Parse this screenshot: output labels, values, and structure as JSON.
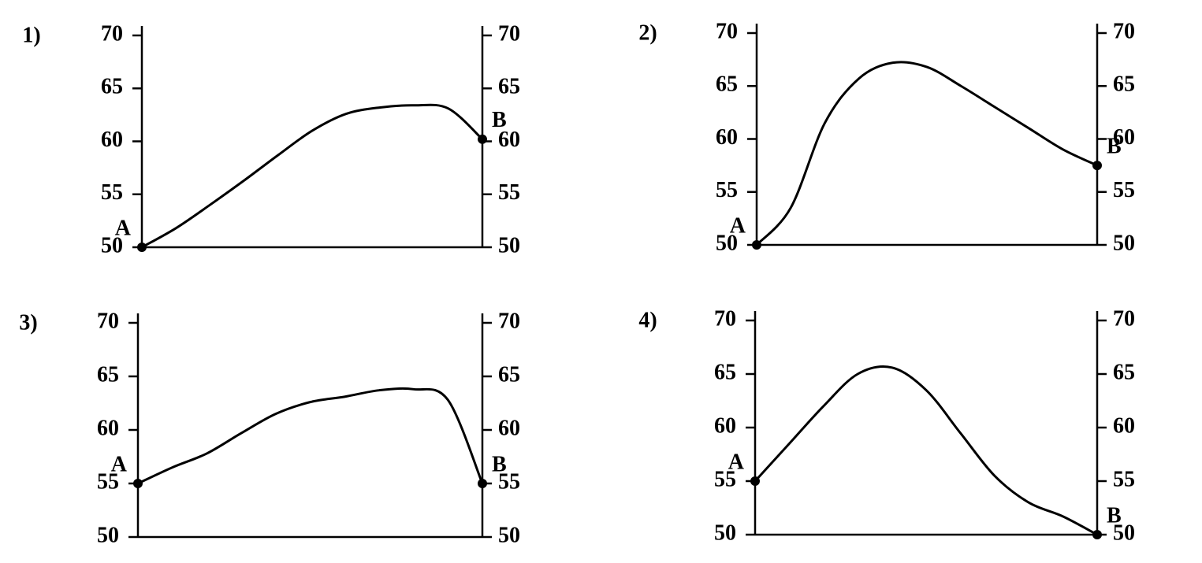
{
  "chart_data": [
    {
      "type": "line",
      "label": "1)",
      "start_label": "A",
      "end_label": "B",
      "categories": [
        null,
        null,
        null,
        null,
        null,
        null,
        null,
        null,
        null,
        null,
        null
      ],
      "values": [
        50,
        51.8,
        54,
        56.3,
        58.7,
        61,
        62.6,
        63.2,
        63.4,
        63.1,
        60.2
      ],
      "ylim": [
        50,
        70
      ],
      "yticks": [
        50,
        55,
        60,
        65,
        70
      ],
      "y2lim": [
        50,
        70
      ],
      "y2ticks": [
        50,
        55,
        60,
        65,
        70
      ],
      "color": "#000000"
    },
    {
      "type": "line",
      "label": "2)",
      "start_label": "A",
      "end_label": "B",
      "categories": [
        null,
        null,
        null,
        null,
        null,
        null,
        null,
        null,
        null,
        null,
        null
      ],
      "values": [
        50,
        53.5,
        61.5,
        65.7,
        67.2,
        66.8,
        65,
        63,
        61,
        59,
        57.5
      ],
      "ylim": [
        50,
        70
      ],
      "yticks": [
        50,
        55,
        60,
        65,
        70
      ],
      "y2lim": [
        50,
        70
      ],
      "y2ticks": [
        50,
        55,
        60,
        65,
        70
      ],
      "color": "#000000"
    },
    {
      "type": "line",
      "label": "3)",
      "start_label": "A",
      "end_label": "B",
      "categories": [
        null,
        null,
        null,
        null,
        null,
        null,
        null,
        null,
        null,
        null,
        null
      ],
      "values": [
        55,
        56.5,
        57.8,
        59.7,
        61.5,
        62.6,
        63.1,
        63.7,
        63.8,
        62.8,
        55
      ],
      "ylim": [
        50,
        70
      ],
      "yticks": [
        50,
        55,
        60,
        65,
        70
      ],
      "y2lim": [
        50,
        70
      ],
      "y2ticks": [
        50,
        55,
        60,
        65,
        70
      ],
      "color": "#000000"
    },
    {
      "type": "line",
      "label": "4)",
      "start_label": "A",
      "end_label": "B",
      "categories": [
        null,
        null,
        null,
        null,
        null,
        null,
        null,
        null,
        null,
        null,
        null
      ],
      "values": [
        55,
        58.5,
        62,
        65,
        65.6,
        63.5,
        59.5,
        55.5,
        53,
        51.7,
        50
      ],
      "ylim": [
        50,
        70
      ],
      "yticks": [
        50,
        55,
        60,
        65,
        70
      ],
      "y2lim": [
        50,
        70
      ],
      "y2ticks": [
        50,
        55,
        60,
        65,
        70
      ],
      "color": "#000000"
    }
  ]
}
